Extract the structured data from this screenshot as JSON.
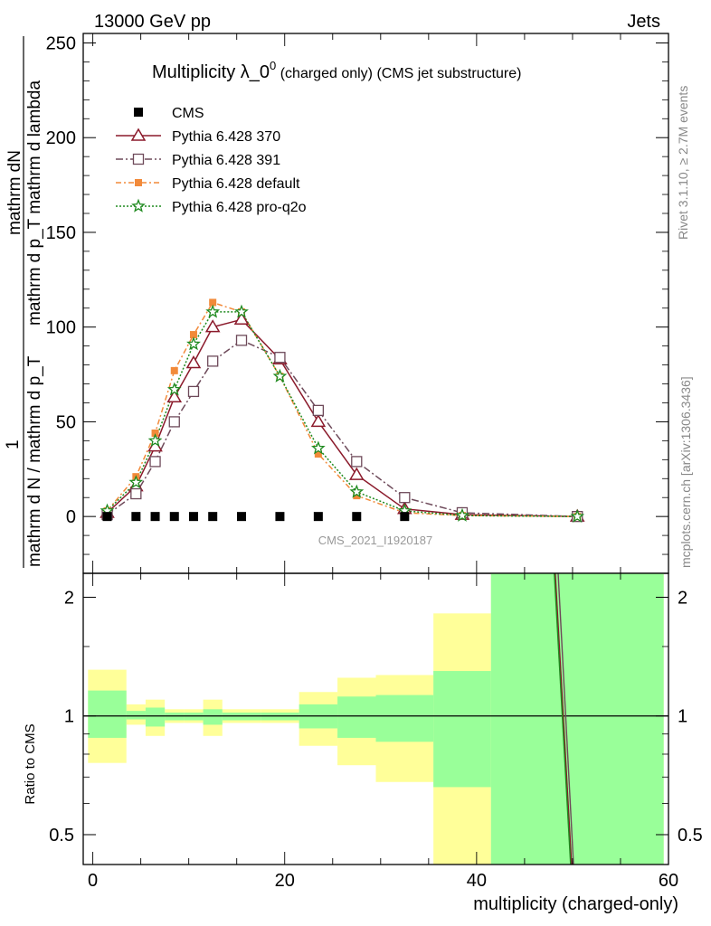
{
  "header": {
    "left": "13000 GeV pp",
    "right": "Jets"
  },
  "side": {
    "rivet": "Rivet 3.1.10, ≥ 2.7M events",
    "mcplots": "mcplots.cern.ch [arXiv:1306.3436]"
  },
  "main_panel": {
    "title_main": "Multiplicity λ_0",
    "title_sup": "0",
    "title_tail": " (charged only) (CMS jet substructure)",
    "ylabel_numerator": "mathrm dN",
    "ylabel_numerator_2": "mathrm d p_T mathrm d lambda",
    "ylabel_one": "1",
    "ylabel_denominator": "mathrm d N / mathrm d p_T",
    "watermark": "CMS_2021_I1920187",
    "yticks": [
      "0",
      "50",
      "100",
      "150",
      "200",
      "250"
    ]
  },
  "ratio_panel": {
    "ylabel": "Ratio to CMS",
    "yticks": [
      "0.5",
      "1",
      "2"
    ],
    "xticks": [
      "0",
      "20",
      "40",
      "60"
    ],
    "xlabel": "multiplicity (charged-only)"
  },
  "chart_data": {
    "type": "line",
    "xlim": [
      -1,
      60
    ],
    "ylim": [
      -30,
      255
    ],
    "ratio_ylim": [
      0.42,
      2.3
    ],
    "ratio_log": true,
    "legend_position": "top-left",
    "data": {
      "name": "CMS",
      "color": "#000000",
      "x": [
        1.5,
        4.5,
        6.5,
        8.5,
        10.5,
        12.5,
        15.5,
        19.5,
        23.5,
        27.5,
        32.5
      ],
      "y": [
        0,
        0,
        0,
        0,
        0,
        0,
        0,
        0,
        0,
        0,
        0
      ]
    },
    "series": [
      {
        "name": "Pythia 6.428 370",
        "color": "#8b1a2b",
        "marker": "triangle",
        "dash": "",
        "x": [
          1.5,
          4.5,
          6.5,
          8.5,
          10.5,
          12.5,
          15.5,
          19.5,
          23.5,
          27.5,
          32.5,
          38.5,
          50.5
        ],
        "y": [
          2,
          16,
          37,
          63,
          81,
          100,
          104,
          83,
          50,
          22,
          4,
          1,
          0
        ]
      },
      {
        "name": "Pythia 6.428 391",
        "color": "#6e4a5a",
        "marker": "square-open",
        "dash": "8,3,2,3",
        "x": [
          1.5,
          4.5,
          6.5,
          8.5,
          10.5,
          12.5,
          15.5,
          19.5,
          23.5,
          27.5,
          32.5,
          38.5,
          50.5
        ],
        "y": [
          1,
          12,
          29,
          50,
          66,
          82,
          93,
          84,
          56,
          29,
          10,
          2,
          0
        ]
      },
      {
        "name": "Pythia 6.428 default",
        "color": "#f28a3a",
        "marker": "square-filled",
        "dash": "6,3,2,3",
        "x": [
          1.5,
          4.5,
          6.5,
          8.5,
          10.5,
          12.5,
          15.5,
          19.5,
          23.5,
          27.5,
          32.5,
          38.5,
          50.5
        ],
        "y": [
          3,
          21,
          44,
          77,
          96,
          113,
          108,
          74,
          33,
          11,
          2,
          0.5,
          0
        ]
      },
      {
        "name": "Pythia 6.428 pro-q2o",
        "color": "#1f8a1f",
        "marker": "star",
        "dash": "2,2",
        "x": [
          1.5,
          4.5,
          6.5,
          8.5,
          10.5,
          12.5,
          15.5,
          19.5,
          23.5,
          27.5,
          32.5,
          38.5,
          50.5
        ],
        "y": [
          3,
          18,
          40,
          67,
          91,
          108,
          108,
          74,
          36,
          13,
          3,
          0.5,
          0
        ]
      }
    ],
    "ratio_bands": [
      {
        "x0": -0.5,
        "x1": 3.5,
        "inner": [
          0.88,
          1.16
        ],
        "outer": [
          0.76,
          1.31
        ]
      },
      {
        "x0": 3.5,
        "x1": 5.5,
        "inner": [
          0.98,
          1.03
        ],
        "outer": [
          0.95,
          1.07
        ]
      },
      {
        "x0": 5.5,
        "x1": 7.5,
        "inner": [
          0.94,
          1.05
        ],
        "outer": [
          0.89,
          1.1
        ]
      },
      {
        "x0": 7.5,
        "x1": 9.5,
        "inner": [
          0.975,
          1.02
        ],
        "outer": [
          0.96,
          1.04
        ]
      },
      {
        "x0": 9.5,
        "x1": 11.5,
        "inner": [
          0.975,
          1.02
        ],
        "outer": [
          0.96,
          1.04
        ]
      },
      {
        "x0": 11.5,
        "x1": 13.5,
        "inner": [
          0.95,
          1.04
        ],
        "outer": [
          0.89,
          1.1
        ]
      },
      {
        "x0": 13.5,
        "x1": 17.5,
        "inner": [
          0.975,
          1.02
        ],
        "outer": [
          0.96,
          1.04
        ]
      },
      {
        "x0": 17.5,
        "x1": 21.5,
        "inner": [
          0.975,
          1.02
        ],
        "outer": [
          0.96,
          1.04
        ]
      },
      {
        "x0": 21.5,
        "x1": 25.5,
        "inner": [
          0.93,
          1.07
        ],
        "outer": [
          0.84,
          1.15
        ]
      },
      {
        "x0": 25.5,
        "x1": 29.5,
        "inner": [
          0.88,
          1.12
        ],
        "outer": [
          0.75,
          1.25
        ]
      },
      {
        "x0": 29.5,
        "x1": 35.5,
        "inner": [
          0.86,
          1.13
        ],
        "outer": [
          0.68,
          1.27
        ]
      },
      {
        "x0": 35.5,
        "x1": 41.5,
        "inner": [
          0.66,
          1.3
        ],
        "outer": [
          0.42,
          1.82
        ]
      },
      {
        "x0": 41.5,
        "x1": 59.5,
        "inner": [
          0.42,
          2.3
        ],
        "outer": [
          0.42,
          2.3
        ]
      }
    ],
    "ratio_lines": [
      {
        "name": "Pythia 6.428 370",
        "color": "#8b1a2b",
        "x": [
          48.2,
          49.9
        ],
        "y": [
          2.3,
          0.42
        ]
      },
      {
        "name": "Pythia 6.428 391",
        "color": "#6e4a5a",
        "x": [
          48.5,
          50.1
        ],
        "y": [
          2.3,
          0.42
        ]
      },
      {
        "name": "Pythia 6.428 pro-q2o",
        "color": "#1f8a1f",
        "x": [
          48.1,
          49.8
        ],
        "y": [
          2.3,
          0.42
        ]
      }
    ]
  }
}
